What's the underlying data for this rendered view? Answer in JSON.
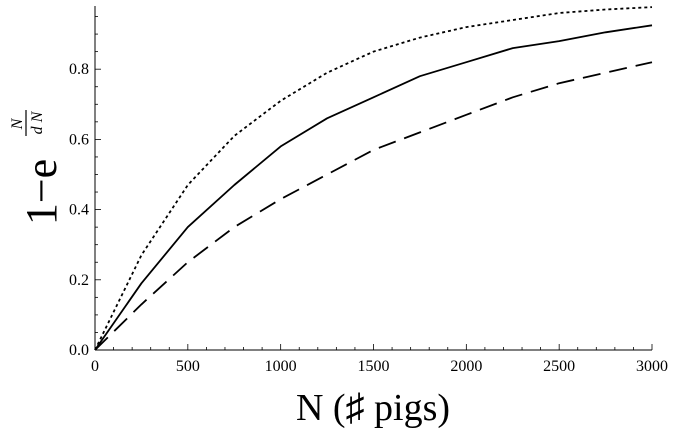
{
  "chart_data": {
    "type": "line",
    "xlabel": "N (♯ pigs)",
    "ylabel": {
      "prefix": "1−e",
      "exp_numerator": "N",
      "exp_denominator": "d N"
    },
    "xlim": [
      0,
      3000
    ],
    "ylim": [
      0,
      0.98
    ],
    "xticks": [
      0,
      500,
      1000,
      1500,
      2000,
      2500,
      3000
    ],
    "xtick_labels": [
      "0",
      "500",
      "1000",
      "1500",
      "2000",
      "2500",
      "3000"
    ],
    "yticks": [
      0.0,
      0.2,
      0.4,
      0.6,
      0.8
    ],
    "ytick_labels": [
      "0.0",
      "0.2",
      "0.4",
      "0.6",
      "0.8"
    ],
    "grid": false,
    "series": [
      {
        "style": "dotted",
        "x": [
          0,
          250,
          500,
          750,
          1000,
          1250,
          1500,
          1750,
          2000,
          2250,
          2500,
          2750,
          3000
        ],
        "y": [
          0,
          0.27,
          0.47,
          0.61,
          0.71,
          0.79,
          0.85,
          0.89,
          0.92,
          0.94,
          0.96,
          0.97,
          0.977
        ]
      },
      {
        "style": "solid",
        "x": [
          0,
          250,
          500,
          750,
          1000,
          1250,
          1500,
          1750,
          2000,
          2250,
          2500,
          2750,
          3000
        ],
        "y": [
          0,
          0.19,
          0.35,
          0.47,
          0.58,
          0.66,
          0.72,
          0.78,
          0.82,
          0.86,
          0.88,
          0.905,
          0.925
        ]
      },
      {
        "style": "dashed",
        "x": [
          0,
          250,
          500,
          750,
          1000,
          1250,
          1500,
          1750,
          2000,
          2250,
          2500,
          2750,
          3000
        ],
        "y": [
          0,
          0.13,
          0.25,
          0.35,
          0.43,
          0.5,
          0.57,
          0.62,
          0.67,
          0.72,
          0.76,
          0.79,
          0.82
        ]
      }
    ]
  }
}
